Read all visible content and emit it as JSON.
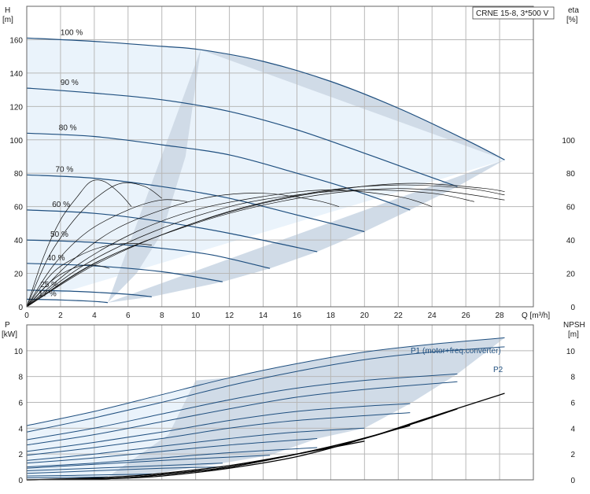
{
  "model_label": "CRNE 15-8, 3*500 V",
  "colors": {
    "curve": "#1f4f7f",
    "fill_dark": "#d0dbe7",
    "fill_light": "#eaf3fb",
    "grid": "#b8b8b8"
  },
  "chart_data": [
    {
      "type": "line",
      "y_axis_left": {
        "label": "H",
        "unit": "[m]",
        "range": [
          0,
          180
        ],
        "ticks": [
          0,
          20,
          40,
          60,
          80,
          100,
          120,
          140,
          160
        ]
      },
      "y_axis_right": {
        "label": "eta",
        "unit": "[%]",
        "range": [
          0,
          180
        ],
        "ticks": [
          0,
          20,
          40,
          60,
          80,
          100
        ]
      },
      "x_axis": {
        "label": "Q [m³/h]",
        "range": [
          0,
          30
        ],
        "ticks": [
          0,
          2,
          4,
          6,
          8,
          10,
          12,
          14,
          16,
          18,
          20,
          22,
          24,
          26,
          28
        ]
      },
      "grid": true,
      "head_curves": [
        {
          "label": "100 %",
          "points": [
            [
              0,
              161
            ],
            [
              4,
              159
            ],
            [
              8,
              156
            ],
            [
              10.3,
              154
            ],
            [
              14,
              147
            ],
            [
              18,
              135
            ],
            [
              22,
              119
            ],
            [
              26,
              100
            ],
            [
              28.3,
              88
            ]
          ]
        },
        {
          "label": "90 %",
          "points": [
            [
              0,
              131
            ],
            [
              4,
              128
            ],
            [
              8,
              124
            ],
            [
              12,
              117
            ],
            [
              16,
              106
            ],
            [
              20,
              92
            ],
            [
              23,
              81
            ],
            [
              25.5,
              72
            ]
          ]
        },
        {
          "label": "80 %",
          "points": [
            [
              0,
              104
            ],
            [
              4,
              102
            ],
            [
              8,
              97
            ],
            [
              12,
              91
            ],
            [
              16,
              80
            ],
            [
              19,
              71
            ],
            [
              22.7,
              58
            ]
          ]
        },
        {
          "label": "70 %",
          "points": [
            [
              0,
              79
            ],
            [
              4,
              77
            ],
            [
              8,
              72
            ],
            [
              12,
              65
            ],
            [
              16,
              55
            ],
            [
              20,
              45
            ]
          ]
        },
        {
          "label": "60 %",
          "points": [
            [
              0,
              58
            ],
            [
              4,
              56
            ],
            [
              8,
              51
            ],
            [
              12,
              44
            ],
            [
              17.2,
              33
            ]
          ]
        },
        {
          "label": "50 %",
          "points": [
            [
              0,
              40
            ],
            [
              4,
              38.5
            ],
            [
              8,
              35
            ],
            [
              11,
              31
            ],
            [
              14.4,
              23
            ]
          ]
        },
        {
          "label": "40 %",
          "points": [
            [
              0,
              26
            ],
            [
              4,
              24.5
            ],
            [
              8,
              21
            ],
            [
              11.6,
              15
            ]
          ]
        },
        {
          "label": "25 %",
          "points": [
            [
              0,
              10
            ],
            [
              3,
              9.2
            ],
            [
              6,
              7.5
            ],
            [
              7.4,
              6
            ]
          ]
        },
        {
          "label": "17 %",
          "points": [
            [
              0,
              4.5
            ],
            [
              2,
              4.1
            ],
            [
              4,
              3.2
            ],
            [
              4.8,
              2.5
            ]
          ]
        }
      ],
      "eta_curves": [
        {
          "points": [
            [
              0,
              0
            ],
            [
              1,
              30
            ],
            [
              2,
              52
            ],
            [
              3,
              66
            ],
            [
              3.8,
              75
            ],
            [
              4.6,
              75
            ],
            [
              5.5,
              68
            ],
            [
              6.2,
              60
            ]
          ]
        },
        {
          "points": [
            [
              0,
              0
            ],
            [
              1.3,
              30
            ],
            [
              2.8,
              52
            ],
            [
              4.2,
              66
            ],
            [
              5.6,
              74
            ],
            [
              7,
              72
            ],
            [
              8,
              65
            ]
          ]
        },
        {
          "points": [
            [
              0,
              0
            ],
            [
              1.6,
              25
            ],
            [
              3.6,
              45
            ],
            [
              6,
              58
            ],
            [
              8,
              64
            ],
            [
              9.5,
              63
            ]
          ]
        },
        {
          "points": [
            [
              0,
              0
            ],
            [
              2.4,
              25
            ],
            [
              5,
              45
            ],
            [
              8,
              58
            ],
            [
              11,
              66
            ],
            [
              14,
              68
            ],
            [
              17,
              64
            ],
            [
              18.5,
              60
            ]
          ]
        },
        {
          "points": [
            [
              0,
              0
            ],
            [
              3,
              25
            ],
            [
              6.5,
              45
            ],
            [
              10,
              58
            ],
            [
              14,
              66
            ],
            [
              18,
              70
            ],
            [
              22,
              66
            ],
            [
              24,
              60
            ]
          ]
        },
        {
          "points": [
            [
              0,
              0
            ],
            [
              3.4,
              25
            ],
            [
              7.5,
              45
            ],
            [
              12,
              60
            ],
            [
              16,
              67
            ],
            [
              20,
              70
            ],
            [
              24,
              68
            ],
            [
              26.5,
              63
            ]
          ]
        },
        {
          "points": [
            [
              0,
              0
            ],
            [
              3.8,
              25
            ],
            [
              8.5,
              45
            ],
            [
              13,
              60
            ],
            [
              18,
              70
            ],
            [
              22,
              73
            ],
            [
              26,
              71
            ],
            [
              28.3,
              67
            ]
          ]
        },
        {
          "points": [
            [
              0,
              0
            ],
            [
              4,
              25
            ],
            [
              9,
              47
            ],
            [
              14,
              62
            ],
            [
              19,
              71
            ],
            [
              23,
              74
            ],
            [
              27,
              71
            ],
            [
              28.3,
              69
            ]
          ]
        },
        {
          "points": [
            [
              0,
              0
            ],
            [
              4.4,
              28
            ],
            [
              10,
              50
            ],
            [
              15,
              63
            ],
            [
              20,
              70
            ],
            [
              24,
              70
            ],
            [
              28.3,
              64
            ]
          ]
        },
        {
          "points": [
            [
              0,
              0
            ],
            [
              1.4,
              15
            ],
            [
              2.5,
              22
            ],
            [
              3.5,
              25
            ],
            [
              4.3,
              24.5
            ],
            [
              4.9,
              23
            ]
          ]
        },
        {
          "points": [
            [
              0,
              0
            ],
            [
              1.5,
              20
            ],
            [
              3,
              30
            ],
            [
              4.5,
              36
            ],
            [
              6,
              38
            ],
            [
              7.4,
              37
            ]
          ]
        }
      ]
    },
    {
      "type": "line",
      "y_axis_left": {
        "label": "P",
        "unit": "[kW]",
        "range": [
          0,
          12
        ],
        "ticks": [
          0,
          2,
          4,
          6,
          8,
          10
        ]
      },
      "y_axis_right": {
        "label": "NPSH",
        "unit": "[m]",
        "range": [
          0,
          12
        ],
        "ticks": [
          0,
          2,
          4,
          6,
          8,
          10
        ]
      },
      "x_axis": {
        "range": [
          0,
          30
        ],
        "ticks": [
          0,
          2,
          4,
          6,
          8,
          10,
          12,
          14,
          16,
          18,
          20,
          22,
          24,
          26,
          28
        ]
      },
      "grid": true,
      "series_labels": [
        "P1 (motor+freq.converter)",
        "P2"
      ],
      "power_curves": [
        {
          "points": [
            [
              0,
              4.2
            ],
            [
              4,
              5.3
            ],
            [
              8,
              6.6
            ],
            [
              12,
              7.9
            ],
            [
              16,
              9.0
            ],
            [
              20,
              9.9
            ],
            [
              24,
              10.5
            ],
            [
              28.3,
              11.0
            ]
          ]
        },
        {
          "points": [
            [
              0,
              3.7
            ],
            [
              4,
              4.8
            ],
            [
              8,
              6.0
            ],
            [
              12,
              7.3
            ],
            [
              16,
              8.4
            ],
            [
              20,
              9.3
            ],
            [
              24,
              9.9
            ],
            [
              28.3,
              10.3
            ]
          ]
        },
        {
          "points": [
            [
              0,
              3.1
            ],
            [
              4,
              4.0
            ],
            [
              8,
              5.1
            ],
            [
              12,
              6.2
            ],
            [
              16,
              7.1
            ],
            [
              20,
              7.7
            ],
            [
              25.5,
              8.2
            ]
          ]
        },
        {
          "points": [
            [
              0,
              2.7
            ],
            [
              4,
              3.5
            ],
            [
              8,
              4.5
            ],
            [
              12,
              5.5
            ],
            [
              16,
              6.4
            ],
            [
              20,
              7.0
            ],
            [
              25.5,
              7.6
            ]
          ]
        },
        {
          "points": [
            [
              0,
              2.2
            ],
            [
              4,
              2.9
            ],
            [
              8,
              3.7
            ],
            [
              12,
              4.6
            ],
            [
              16,
              5.3
            ],
            [
              20,
              5.7
            ],
            [
              22.7,
              5.9
            ]
          ]
        },
        {
          "points": [
            [
              0,
              1.9
            ],
            [
              4,
              2.5
            ],
            [
              8,
              3.2
            ],
            [
              12,
              4.0
            ],
            [
              16,
              4.6
            ],
            [
              22.7,
              5.2
            ]
          ]
        },
        {
          "points": [
            [
              0,
              1.5
            ],
            [
              4,
              2.0
            ],
            [
              8,
              2.6
            ],
            [
              12,
              3.2
            ],
            [
              16,
              3.7
            ],
            [
              20,
              4.0
            ]
          ]
        },
        {
          "points": [
            [
              0,
              1.3
            ],
            [
              4,
              1.7
            ],
            [
              8,
              2.2
            ],
            [
              12,
              2.7
            ],
            [
              17.2,
              3.2
            ]
          ]
        },
        {
          "points": [
            [
              0,
              1.0
            ],
            [
              4,
              1.3
            ],
            [
              8,
              1.7
            ],
            [
              12,
              2.1
            ],
            [
              17.2,
              2.5
            ]
          ]
        },
        {
          "points": [
            [
              0,
              0.9
            ],
            [
              4,
              1.2
            ],
            [
              8,
              1.5
            ],
            [
              11,
              1.7
            ],
            [
              14.4,
              1.9
            ]
          ]
        },
        {
          "points": [
            [
              0,
              0.7
            ],
            [
              4,
              0.9
            ],
            [
              8,
              1.1
            ],
            [
              11.6,
              1.3
            ]
          ]
        },
        {
          "points": [
            [
              0,
              0.5
            ],
            [
              4,
              0.7
            ],
            [
              8,
              0.9
            ],
            [
              11.6,
              1.0
            ]
          ]
        },
        {
          "points": [
            [
              0,
              0.3
            ],
            [
              3,
              0.35
            ],
            [
              7.4,
              0.45
            ]
          ]
        },
        {
          "points": [
            [
              0,
              0.15
            ],
            [
              2,
              0.18
            ],
            [
              4.8,
              0.22
            ]
          ]
        }
      ],
      "npsh_curves": [
        {
          "points": [
            [
              0,
              0
            ],
            [
              5,
              0.1
            ],
            [
              8,
              0.3
            ],
            [
              12,
              0.9
            ],
            [
              16,
              1.8
            ],
            [
              20,
              3.2
            ],
            [
              24,
              4.9
            ],
            [
              28.3,
              6.7
            ]
          ]
        },
        {
          "points": [
            [
              0,
              0
            ],
            [
              5,
              0.1
            ],
            [
              8,
              0.4
            ],
            [
              12,
              1.0
            ],
            [
              16,
              2.0
            ],
            [
              20,
              3.2
            ],
            [
              23,
              4.4
            ],
            [
              25.5,
              5.5
            ]
          ]
        },
        {
          "points": [
            [
              0,
              0
            ],
            [
              5,
              0.1
            ],
            [
              8,
              0.4
            ],
            [
              12,
              1.0
            ],
            [
              16,
              2.0
            ],
            [
              19,
              2.9
            ],
            [
              22.7,
              4.2
            ]
          ]
        },
        {
          "points": [
            [
              0,
              0
            ],
            [
              5,
              0.2
            ],
            [
              8,
              0.5
            ],
            [
              12,
              1.1
            ],
            [
              16,
              2.0
            ],
            [
              20,
              3.0
            ]
          ]
        }
      ]
    }
  ]
}
